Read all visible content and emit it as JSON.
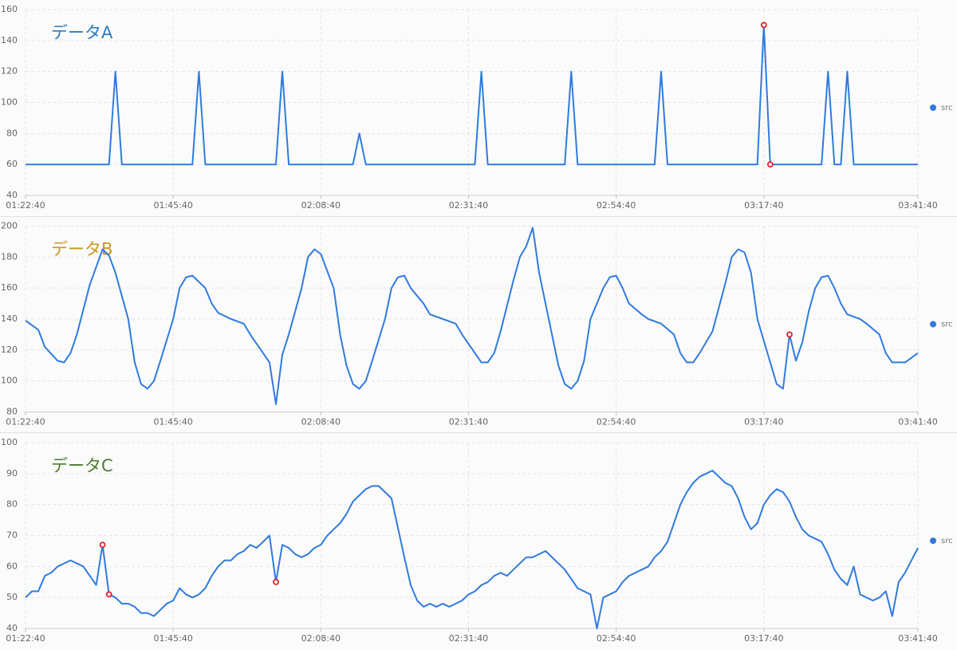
{
  "chart_data": [
    {
      "type": "line",
      "title": "データA",
      "title_color": "#2b7bbd",
      "x": [
        "01:22:40",
        "01:35:40",
        "01:36:40",
        "01:37:40",
        "01:48:40",
        "01:49:40",
        "01:50:40",
        "02:01:40",
        "02:02:40",
        "02:03:40",
        "02:13:40",
        "02:14:40",
        "02:15:40",
        "02:32:40",
        "02:33:40",
        "02:34:40",
        "02:46:40",
        "02:47:40",
        "02:48:40",
        "03:00:40",
        "03:01:40",
        "03:02:40",
        "03:16:40",
        "03:17:40",
        "03:18:40",
        "03:26:40",
        "03:27:40",
        "03:28:40",
        "03:29:40",
        "03:30:40",
        "03:31:40",
        "03:41:40"
      ],
      "series": [
        {
          "name": "src",
          "color": "#2f7be0",
          "values": [
            60,
            60,
            120,
            60,
            60,
            120,
            60,
            60,
            120,
            60,
            60,
            80,
            60,
            60,
            120,
            60,
            60,
            120,
            60,
            60,
            120,
            60,
            60,
            150,
            60,
            60,
            120,
            60,
            60,
            120,
            60,
            60
          ]
        }
      ],
      "markers": {
        "color": "#e0202a",
        "points": [
          {
            "x": "03:17:40",
            "value": 150
          },
          {
            "x": "03:18:40",
            "value": 60
          }
        ]
      },
      "xlim": [
        "01:22:40",
        "03:41:40"
      ],
      "xticks": [
        "01:22:40",
        "01:45:40",
        "02:08:40",
        "02:31:40",
        "02:54:40",
        "03:17:40",
        "03:41:40"
      ],
      "ylim": [
        40,
        160
      ],
      "yticks": [
        40,
        60,
        80,
        100,
        120,
        140,
        160
      ],
      "grid": true
    },
    {
      "type": "line",
      "title": "データB",
      "title_color": "#c8961e",
      "x": [
        "01:22:40",
        "01:24:40",
        "01:25:40",
        "01:27:40",
        "01:28:40",
        "01:29:40",
        "01:30:40",
        "01:32:40",
        "01:34:40",
        "01:35:40",
        "01:36:40",
        "01:38:40",
        "01:39:40",
        "01:40:40",
        "01:41:40",
        "01:42:40",
        "01:43:40",
        "01:45:40",
        "01:46:40",
        "01:47:40",
        "01:48:40",
        "01:50:40",
        "01:51:40",
        "01:52:40",
        "01:54:40",
        "01:56:40",
        "01:57:40",
        "01:59:40",
        "02:00:40",
        "02:01:40",
        "02:02:40",
        "02:03:40",
        "02:05:40",
        "02:06:40",
        "02:07:40",
        "02:08:40",
        "02:10:40",
        "02:11:40",
        "02:12:40",
        "02:13:40",
        "02:14:40",
        "02:15:40",
        "02:16:40",
        "02:18:40",
        "02:19:40",
        "02:20:40",
        "02:21:40",
        "02:22:40",
        "02:24:40",
        "02:25:40",
        "02:27:40",
        "02:29:40",
        "02:30:40",
        "02:32:40",
        "02:33:40",
        "02:34:40",
        "02:35:40",
        "02:36:40",
        "02:38:40",
        "02:39:40",
        "02:40:40",
        "02:41:40",
        "02:42:40",
        "02:44:40",
        "02:45:40",
        "02:46:40",
        "02:47:40",
        "02:48:40",
        "02:49:40",
        "02:50:40",
        "02:52:40",
        "02:53:40",
        "02:54:40",
        "02:55:40",
        "02:56:40",
        "02:58:40",
        "02:59:40",
        "03:01:40",
        "03:03:40",
        "03:04:40",
        "03:05:40",
        "03:06:40",
        "03:07:40",
        "03:09:40",
        "03:11:40",
        "03:12:40",
        "03:13:40",
        "03:14:40",
        "03:15:40",
        "03:16:40",
        "03:18:40",
        "03:19:40",
        "03:20:40",
        "03:21:40",
        "03:22:40",
        "03:23:40",
        "03:24:40",
        "03:25:40",
        "03:26:40",
        "03:27:40",
        "03:28:40",
        "03:29:40",
        "03:30:40",
        "03:32:40",
        "03:33:40",
        "03:35:40",
        "03:36:40",
        "03:37:40",
        "03:39:40",
        "03:41:40"
      ],
      "series": [
        {
          "name": "src",
          "color": "#2f7be0",
          "values": [
            139,
            133,
            122,
            113,
            112,
            118,
            130,
            162,
            185,
            181,
            170,
            140,
            112,
            98,
            95,
            100,
            113,
            140,
            160,
            167,
            168,
            160,
            150,
            144,
            140,
            137,
            130,
            118,
            112,
            85,
            117,
            130,
            160,
            180,
            185,
            182,
            160,
            130,
            110,
            98,
            95,
            100,
            113,
            140,
            160,
            167,
            168,
            160,
            150,
            143,
            140,
            137,
            130,
            118,
            112,
            112,
            118,
            132,
            165,
            180,
            187,
            199,
            170,
            130,
            110,
            98,
            95,
            100,
            113,
            140,
            160,
            167,
            168,
            160,
            150,
            143,
            140,
            137,
            130,
            118,
            112,
            112,
            118,
            132,
            163,
            180,
            185,
            183,
            170,
            140,
            112,
            98,
            95,
            130,
            113,
            125,
            145,
            160,
            167,
            168,
            160,
            150,
            143,
            140,
            137,
            130,
            118,
            112,
            112,
            118
          ]
        }
      ],
      "markers": {
        "color": "#e0202a",
        "points": [
          {
            "x": "03:21:40",
            "value": 130
          }
        ]
      },
      "xlim": [
        "01:22:40",
        "03:41:40"
      ],
      "xticks": [
        "01:22:40",
        "01:45:40",
        "02:08:40",
        "02:31:40",
        "02:54:40",
        "03:17:40",
        "03:41:40"
      ],
      "ylim": [
        80,
        200
      ],
      "yticks": [
        80,
        100,
        120,
        140,
        160,
        180,
        200
      ],
      "grid": true
    },
    {
      "type": "line",
      "title": "データC",
      "title_color": "#4d7a32",
      "x": [
        "01:22:40",
        "01:23:40",
        "01:24:40",
        "01:25:40",
        "01:26:40",
        "01:27:40",
        "01:29:40",
        "01:31:40",
        "01:33:40",
        "01:34:40",
        "01:35:40",
        "01:36:40",
        "01:37:40",
        "01:38:40",
        "01:39:40",
        "01:40:40",
        "01:41:40",
        "01:42:40",
        "01:43:40",
        "01:44:40",
        "01:45:40",
        "01:46:40",
        "01:47:40",
        "01:48:40",
        "01:49:40",
        "01:50:40",
        "01:51:40",
        "01:52:40",
        "01:53:40",
        "01:54:40",
        "01:55:40",
        "01:56:40",
        "01:57:40",
        "01:58:40",
        "01:59:40",
        "02:00:40",
        "02:01:40",
        "02:02:40",
        "02:03:40",
        "02:04:40",
        "02:05:40",
        "02:06:40",
        "02:07:40",
        "02:08:40",
        "02:09:40",
        "02:10:40",
        "02:11:40",
        "02:12:40",
        "02:13:40",
        "02:14:40",
        "02:15:40",
        "02:16:40",
        "02:17:40",
        "02:19:40",
        "02:21:40",
        "02:22:40",
        "02:23:40",
        "02:24:40",
        "02:25:40",
        "02:26:40",
        "02:27:40",
        "02:28:40",
        "02:29:40",
        "02:30:40",
        "02:31:40",
        "02:32:40",
        "02:33:40",
        "02:34:40",
        "02:35:40",
        "02:36:40",
        "02:37:40",
        "02:38:40",
        "02:40:40",
        "02:41:40",
        "02:43:40",
        "02:46:40",
        "02:48:40",
        "02:50:40",
        "02:51:40",
        "02:52:40",
        "02:53:40",
        "02:54:40",
        "02:55:40",
        "02:56:40",
        "02:58:40",
        "02:59:40",
        "03:00:40",
        "03:01:40",
        "03:02:40",
        "03:03:40",
        "03:04:40",
        "03:05:40",
        "03:06:40",
        "03:07:40",
        "03:09:40",
        "03:10:40",
        "03:11:40",
        "03:12:40",
        "03:13:40",
        "03:14:40",
        "03:15:40",
        "03:16:40",
        "03:17:40",
        "03:18:40",
        "03:19:40",
        "03:20:40",
        "03:21:40",
        "03:22:40",
        "03:23:40",
        "03:24:40",
        "03:26:40",
        "03:27:40",
        "03:28:40",
        "03:29:40",
        "03:30:40",
        "03:31:40",
        "03:32:40",
        "03:33:40",
        "03:34:40",
        "03:35:40",
        "03:36:40",
        "03:37:40",
        "03:38:40",
        "03:39:40",
        "03:40:40",
        "03:41:40"
      ],
      "series": [
        {
          "name": "src",
          "color": "#2f7be0",
          "values": [
            50,
            52,
            52,
            57,
            58,
            60,
            62,
            60,
            54,
            67,
            51,
            50,
            48,
            48,
            47,
            45,
            45,
            44,
            46,
            48,
            49,
            53,
            51,
            50,
            51,
            53,
            57,
            60,
            62,
            62,
            64,
            65,
            67,
            66,
            68,
            70,
            55,
            67,
            66,
            64,
            63,
            64,
            66,
            67,
            70,
            72,
            74,
            77,
            81,
            83,
            85,
            86,
            86,
            82,
            63,
            54,
            49,
            47,
            48,
            47,
            48,
            47,
            48,
            49,
            51,
            52,
            54,
            55,
            57,
            58,
            57,
            59,
            63,
            63,
            65,
            59,
            53,
            51,
            40,
            50,
            51,
            52,
            55,
            57,
            59,
            60,
            63,
            65,
            68,
            74,
            80,
            84,
            87,
            89,
            91,
            89,
            87,
            86,
            82,
            76,
            72,
            74,
            80,
            83,
            85,
            84,
            81,
            76,
            72,
            70,
            68,
            64,
            59,
            56,
            54,
            60,
            51,
            50,
            49,
            50,
            52,
            44,
            55,
            58,
            62,
            66
          ]
        }
      ],
      "markers": {
        "color": "#e0202a",
        "points": [
          {
            "x": "01:34:40",
            "value": 67
          },
          {
            "x": "01:35:40",
            "value": 51
          },
          {
            "x": "02:01:40",
            "value": 55
          }
        ]
      },
      "xlim": [
        "01:22:40",
        "03:41:40"
      ],
      "xticks": [
        "01:22:40",
        "01:45:40",
        "02:08:40",
        "02:31:40",
        "02:54:40",
        "03:17:40",
        "03:41:40"
      ],
      "ylim": [
        40,
        100
      ],
      "yticks": [
        40,
        50,
        60,
        70,
        80,
        90,
        100
      ],
      "grid": true
    }
  ]
}
